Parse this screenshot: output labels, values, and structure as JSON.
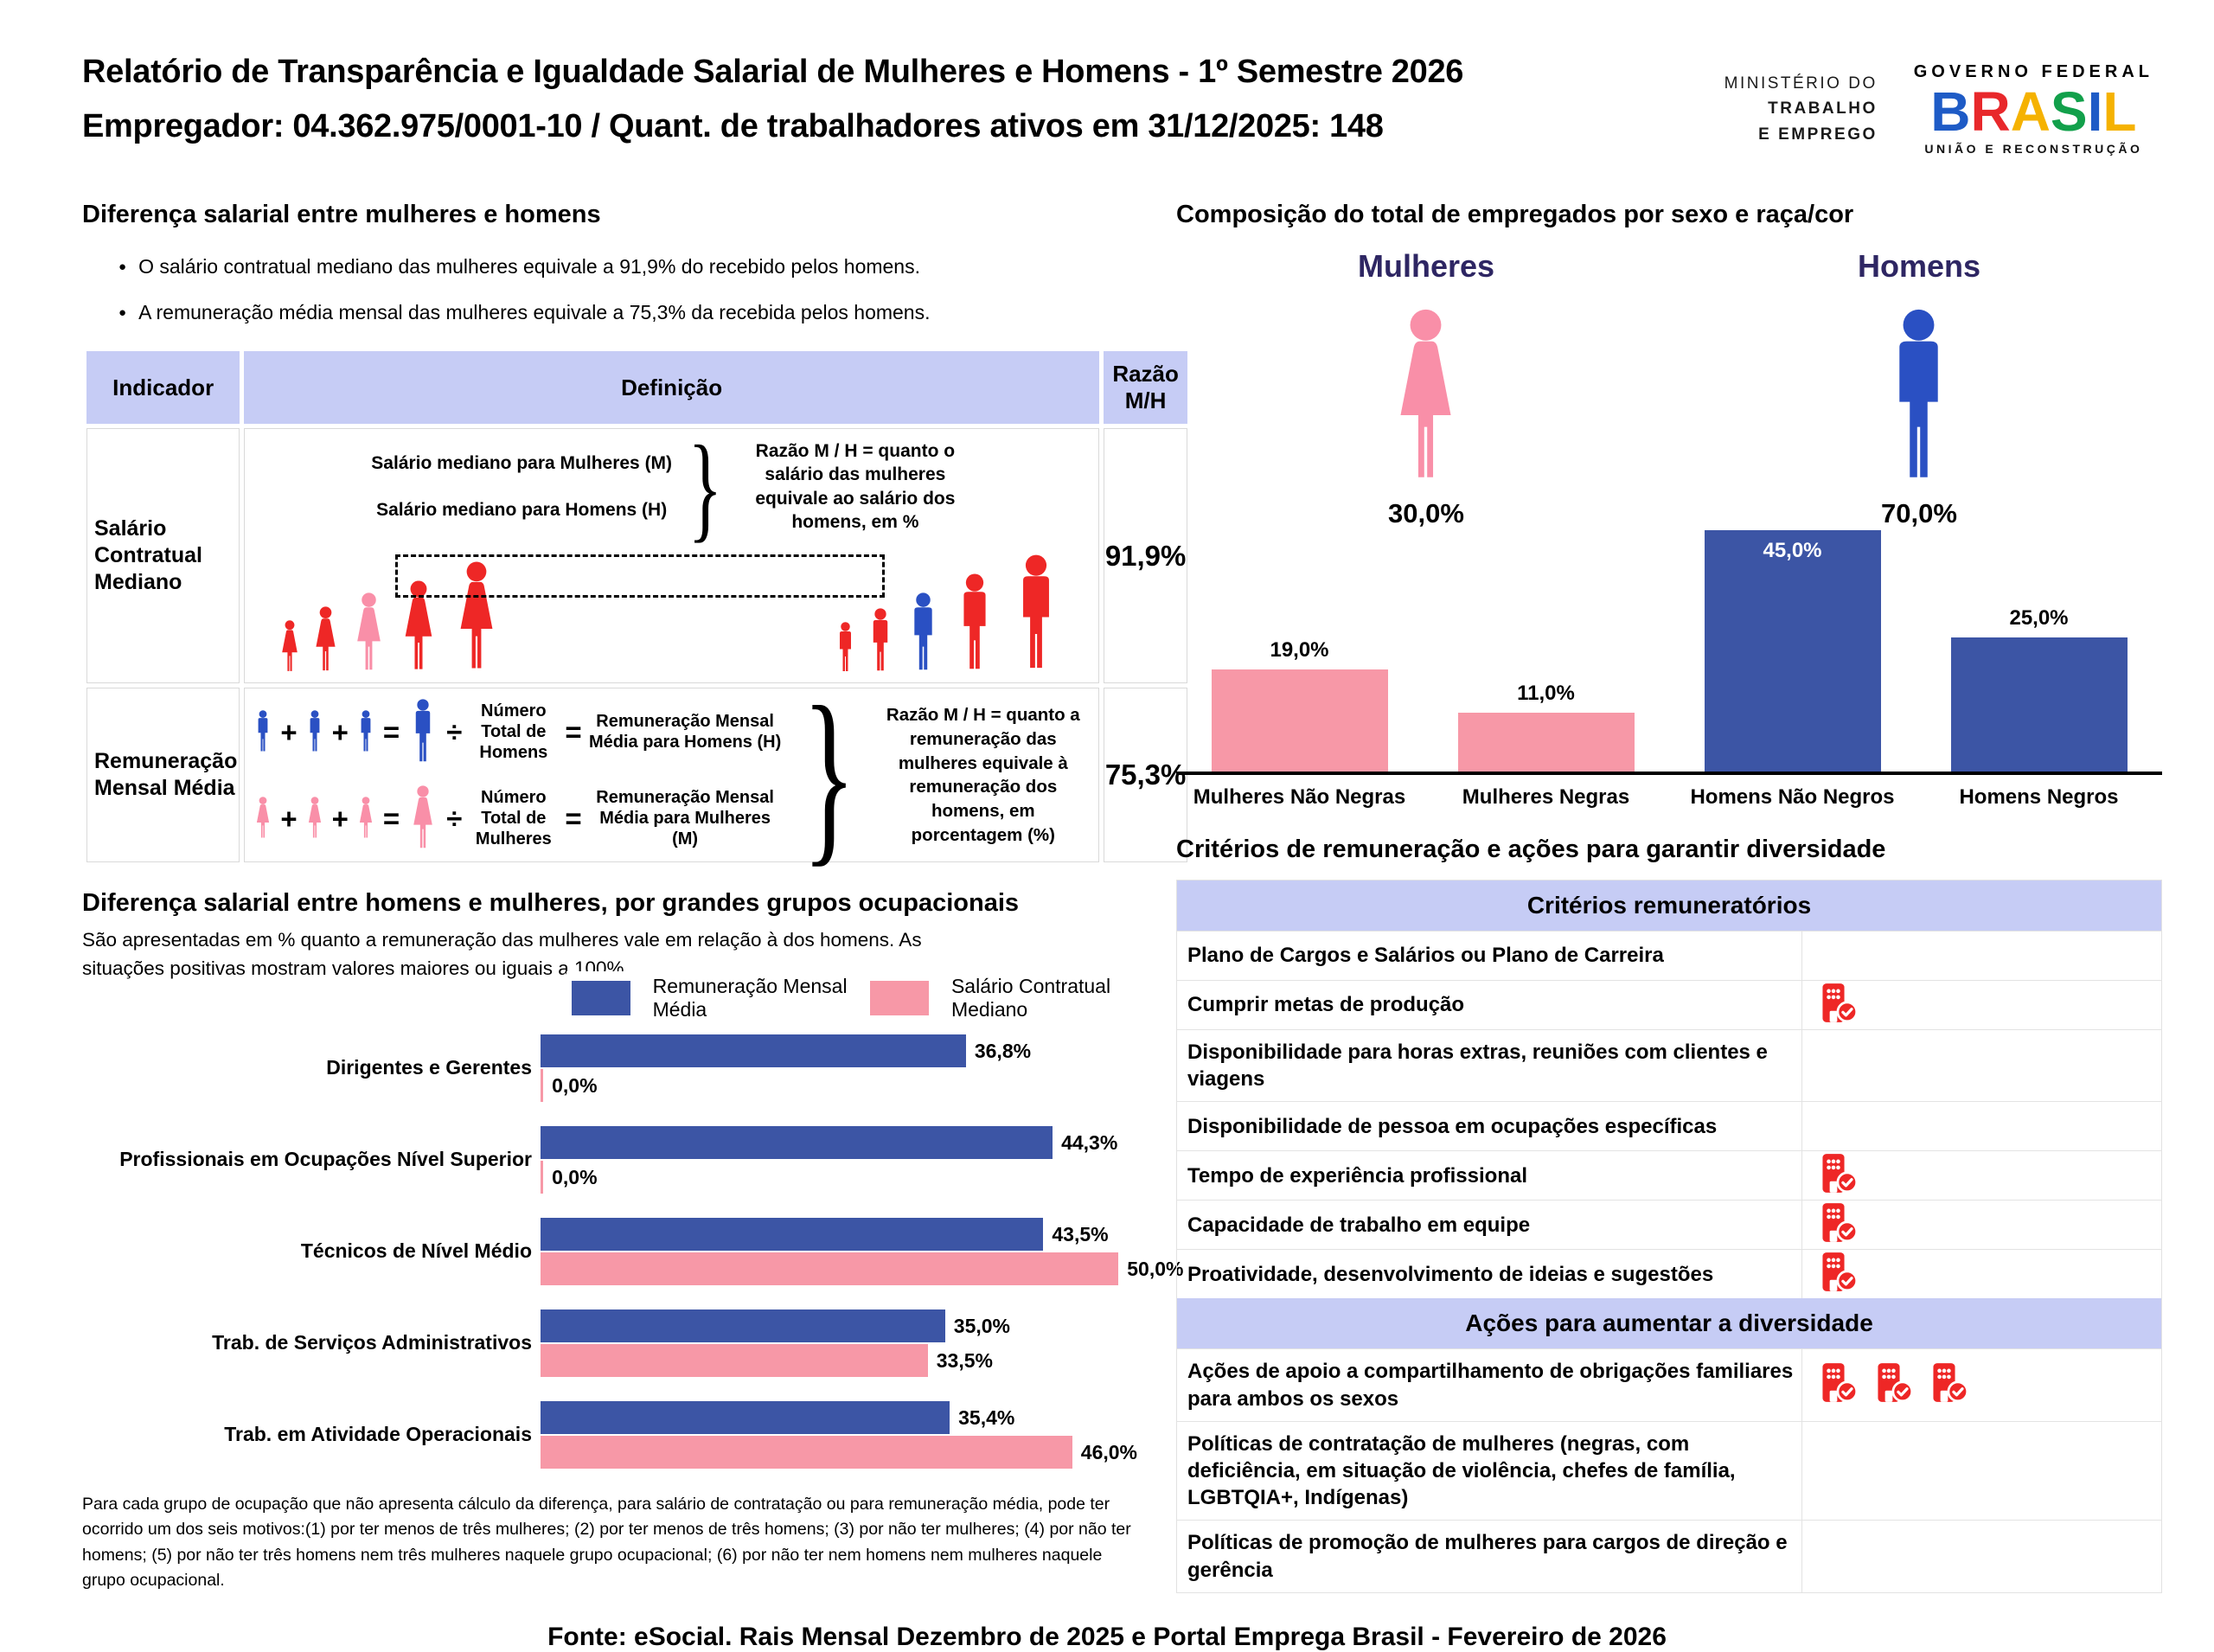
{
  "header": {
    "title_line1": "Relatório de Transparência e Igualdade Salarial de Mulheres e Homens - 1º Semestre 2026",
    "title_line2": "Empregador: 04.362.975/0001-10 / Quant. de trabalhadores ativos em 31/12/2025: 148",
    "ministry": [
      "MINISTÉRIO DO",
      "TRABALHO",
      "E EMPREGO"
    ],
    "gov_logo": {
      "top": "GOVERNO FEDERAL",
      "brand": "BRASIL",
      "bottom": "UNIÃO E RECONSTRUÇÃO",
      "letter_colors": [
        "#1E5BC6",
        "#E8282B",
        "#F5B201",
        "#12A04B",
        "#1E5BC6",
        "#F5B201"
      ]
    }
  },
  "salary_gap": {
    "title": "Diferença salarial entre mulheres e homens",
    "bullets": [
      "O salário contratual mediano das mulheres equivale a 91,9% do recebido pelos homens.",
      "A remuneração média mensal das mulheres equivale a 75,3% da recebida pelos homens."
    ],
    "table": {
      "headers": [
        "Indicador",
        "Definição",
        "Razão M/H"
      ],
      "rows": [
        {
          "indicator": "Salário Contratual Mediano",
          "def_line1": "Salário mediano para Mulheres (M)",
          "def_line2": "Salário mediano para Homens (H)",
          "note": "Razão M / H = quanto o salário das mulheres equivale ao salário dos homens, em %",
          "ratio": "91,9%"
        },
        {
          "indicator": "Remuneração Mensal Média",
          "men_divisor": "Número Total de Homens",
          "men_result": "Remuneração Mensal Média para Homens (H)",
          "women_divisor": "Número Total de Mulheres",
          "women_result": "Remuneração Mensal Média para Mulheres (M)",
          "note": "Razão M / H = quanto a remuneração das mulheres equivale à remuneração dos homens, em porcentagem (%)",
          "ratio": "75,3%"
        }
      ]
    }
  },
  "composition": {
    "title": "Composição do total de empregados por sexo e raça/cor",
    "women_label": "Mulheres",
    "women_value": "30,0%",
    "men_label": "Homens",
    "men_value": "70,0%"
  },
  "occupations": {
    "title": "Diferença salarial entre homens e mulheres, por grandes grupos ocupacionais",
    "subtitle": "São apresentadas em % quanto a remuneração das mulheres vale em relação à dos homens. As situações positivas mostram valores maiores ou iguais a 100%",
    "footnote": "Para cada grupo de ocupação que não apresenta cálculo da diferença, para salário de contratação ou para remuneração média, pode ter ocorrido um dos seis motivos:(1) por ter menos de três mulheres; (2) por ter menos de três homens; (3) por não ter mulheres; (4) por não ter homens; (5) por não ter três homens nem três mulheres naquele grupo ocupacional; (6) por não ter nem homens nem mulheres naquele grupo ocupacional."
  },
  "criteria": {
    "title": "Critérios de remuneração e ações para garantir diversidade",
    "sections": [
      {
        "header": "Critérios remuneratórios",
        "rows": [
          {
            "label": "Plano de Cargos e Salários ou Plano de Carreira",
            "icon_count": 0
          },
          {
            "label": "Cumprir metas de produção",
            "icon_count": 1
          },
          {
            "label": "Disponibilidade para horas extras, reuniões com clientes e viagens",
            "icon_count": 0
          },
          {
            "label": "Disponibilidade de pessoa em ocupações específicas",
            "icon_count": 0
          },
          {
            "label": "Tempo de experiência profissional",
            "icon_count": 1
          },
          {
            "label": "Capacidade de trabalho em equipe",
            "icon_count": 1
          },
          {
            "label": "Proatividade, desenvolvimento de ideias e sugestões",
            "icon_count": 1
          }
        ]
      },
      {
        "header": "Ações para aumentar a diversidade",
        "rows": [
          {
            "label": "Ações de apoio a compartilhamento de obrigações familiares para ambos os sexos",
            "icon_count": 3
          },
          {
            "label": "Políticas de contratação de mulheres (negras, com deficiência, em situação de violência, chefes de família, LGBTQIA+, Indígenas)",
            "icon_count": 0
          },
          {
            "label": "Políticas de promoção de mulheres para cargos de direção e gerência",
            "icon_count": 0
          }
        ]
      }
    ]
  },
  "footer": {
    "source": "Fonte: eSocial. Rais Mensal Dezembro de 2025 e Portal Emprega Brasil - Fevereiro de 2026"
  },
  "colors": {
    "bar_blue": "#3C55A5",
    "bar_pink": "#F798A7",
    "red": "#EE2726",
    "icon_pink": "#F98FA8",
    "icon_blue": "#2A50C3",
    "header_blue": "#C6CCF5",
    "purple": "#2E2663"
  },
  "chart_data": [
    {
      "type": "bar",
      "title": "Composição do total de empregados por sexo e raça/cor",
      "categories": [
        "Mulheres Não Negras",
        "Mulheres Negras",
        "Homens Não Negros",
        "Homens Negros"
      ],
      "values": [
        19.0,
        11.0,
        45.0,
        25.0
      ],
      "labels": [
        "19,0%",
        "11,0%",
        "45,0%",
        "25,0%"
      ],
      "bar_colors": [
        "pink",
        "pink",
        "blue",
        "blue"
      ],
      "label_inside": [
        false,
        false,
        true,
        false
      ],
      "ylim": [
        0,
        47
      ],
      "grid": false,
      "totals": {
        "Mulheres": 30.0,
        "Homens": 70.0
      }
    },
    {
      "type": "bar",
      "orientation": "horizontal",
      "title": "Diferença salarial entre homens e mulheres, por grandes grupos ocupacionais",
      "categories": [
        "Dirigentes e Gerentes",
        "Profissionais em Ocupações Nível Superior",
        "Técnicos de Nível Médio",
        "Trab. de Serviços Administrativos",
        "Trab. em Atividade Operacionais"
      ],
      "series": [
        {
          "name": "Remuneração Mensal Média",
          "color": "blue",
          "values": [
            36.8,
            44.3,
            43.5,
            35.0,
            35.4
          ],
          "labels": [
            "36,8%",
            "44,3%",
            "43,5%",
            "35,0%",
            "35,4%"
          ]
        },
        {
          "name": "Salário Contratual Mediano",
          "color": "pink",
          "values": [
            0.0,
            0.0,
            50.0,
            33.5,
            46.0
          ],
          "labels": [
            "0,0%",
            "0,0%",
            "50,0%",
            "33,5%",
            "46,0%"
          ]
        }
      ],
      "xlim": [
        0,
        52
      ],
      "legend_position": "top",
      "grid": false
    }
  ]
}
